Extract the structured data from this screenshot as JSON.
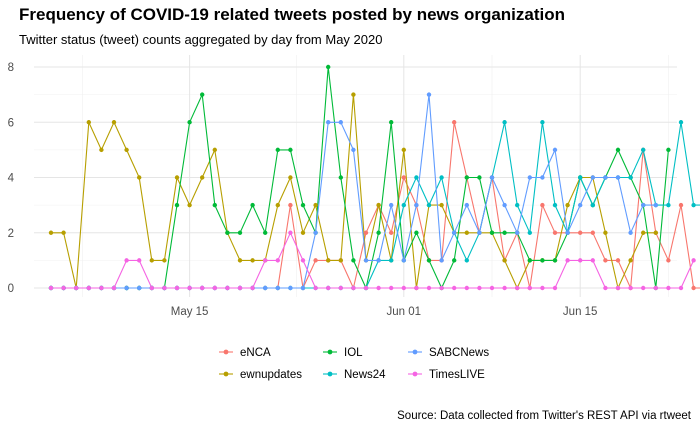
{
  "chart_data": {
    "type": "line",
    "title": "Frequency of COVID-19 related tweets posted by news organization",
    "subtitle": "Twitter status (tweet) counts aggregated by day from May 2020",
    "caption": "Source: Data collected from Twitter's REST API via rtweet",
    "x_start_date": "2020-05-04",
    "x_ticks": [
      {
        "date": "2020-05-15",
        "label": "May 15"
      },
      {
        "date": "2020-06-01",
        "label": "Jun 01"
      },
      {
        "date": "2020-06-15",
        "label": "Jun 15"
      }
    ],
    "y_ticks": [
      0,
      2,
      4,
      6,
      8
    ],
    "ylim": [
      0,
      8
    ],
    "xlabel": "",
    "ylabel": "",
    "grid": true,
    "legend_position": "bottom",
    "series": [
      {
        "name": "eNCA",
        "color": "#F8766D",
        "values": [
          0,
          0,
          0,
          0,
          0,
          0,
          0,
          0,
          0,
          0,
          0,
          0,
          0,
          0,
          0,
          0,
          0,
          0,
          0,
          3,
          0,
          1,
          1,
          1,
          0,
          2,
          3,
          2,
          4,
          3,
          1,
          1,
          6,
          4,
          2,
          4,
          1,
          2,
          0,
          3,
          2,
          2,
          2,
          2,
          1,
          1,
          0,
          5,
          2,
          1,
          3,
          0,
          0,
          1,
          2,
          3,
          2,
          2
        ]
      },
      {
        "name": "ewnupdates",
        "color": "#B79F00",
        "values": [
          2,
          2,
          0,
          6,
          5,
          6,
          5,
          4,
          1,
          1,
          4,
          3,
          4,
          5,
          2,
          1,
          1,
          1,
          3,
          4,
          2,
          3,
          1,
          1,
          7,
          1,
          3,
          1,
          5,
          0,
          3,
          3,
          2,
          2,
          2,
          2,
          1,
          0,
          1,
          1,
          1,
          3,
          4,
          4,
          2,
          0,
          1,
          2,
          2
        ]
      },
      {
        "name": "IOL",
        "color": "#00BA38",
        "values": [
          0,
          0,
          0,
          0,
          0,
          0,
          0,
          0,
          0,
          0,
          3,
          6,
          7,
          3,
          2,
          2,
          3,
          2,
          5,
          5,
          3,
          2,
          8,
          4,
          1,
          0,
          2,
          6,
          1,
          2,
          1,
          0,
          1,
          4,
          4,
          2,
          2,
          2,
          1,
          1,
          1,
          2,
          4,
          3,
          4,
          5,
          4,
          3,
          0,
          5
        ]
      },
      {
        "name": "News24",
        "color": "#00BFC4",
        "values": [
          0,
          0,
          0,
          0,
          0,
          0,
          0,
          0,
          0,
          0,
          0,
          0,
          0,
          0,
          0,
          0,
          0,
          0,
          0,
          0,
          0,
          0,
          0,
          0,
          0,
          0,
          1,
          1,
          3,
          4,
          3,
          4,
          2,
          1,
          2,
          4,
          6,
          3,
          2,
          6,
          3,
          2,
          4,
          3,
          4,
          4,
          4,
          5,
          3,
          3,
          6,
          3,
          3,
          3,
          3,
          4,
          6,
          6
        ]
      },
      {
        "name": "SABCNews",
        "color": "#619CFF",
        "values": [
          0,
          0,
          0,
          0,
          0,
          0,
          0,
          0,
          0,
          0,
          0,
          0,
          0,
          0,
          0,
          0,
          0,
          0,
          0,
          0,
          0,
          2,
          6,
          6,
          5,
          1,
          1,
          3,
          1,
          3,
          7,
          1,
          2,
          3,
          2,
          4,
          3,
          2,
          4,
          4,
          5,
          2,
          3,
          4,
          4,
          4,
          2,
          3,
          3
        ]
      },
      {
        "name": "TimesLIVE",
        "color": "#F564E3",
        "values": [
          0,
          0,
          0,
          0,
          0,
          0,
          1,
          1,
          0,
          0,
          0,
          0,
          0,
          0,
          0,
          0,
          0,
          1,
          1,
          2,
          1,
          0,
          0,
          0,
          0,
          0,
          0,
          0,
          0,
          0,
          0,
          0,
          0,
          0,
          0,
          0,
          0,
          0,
          0,
          0,
          0,
          1,
          1,
          1,
          0,
          0,
          0,
          0,
          0,
          0,
          0,
          1
        ]
      }
    ]
  }
}
